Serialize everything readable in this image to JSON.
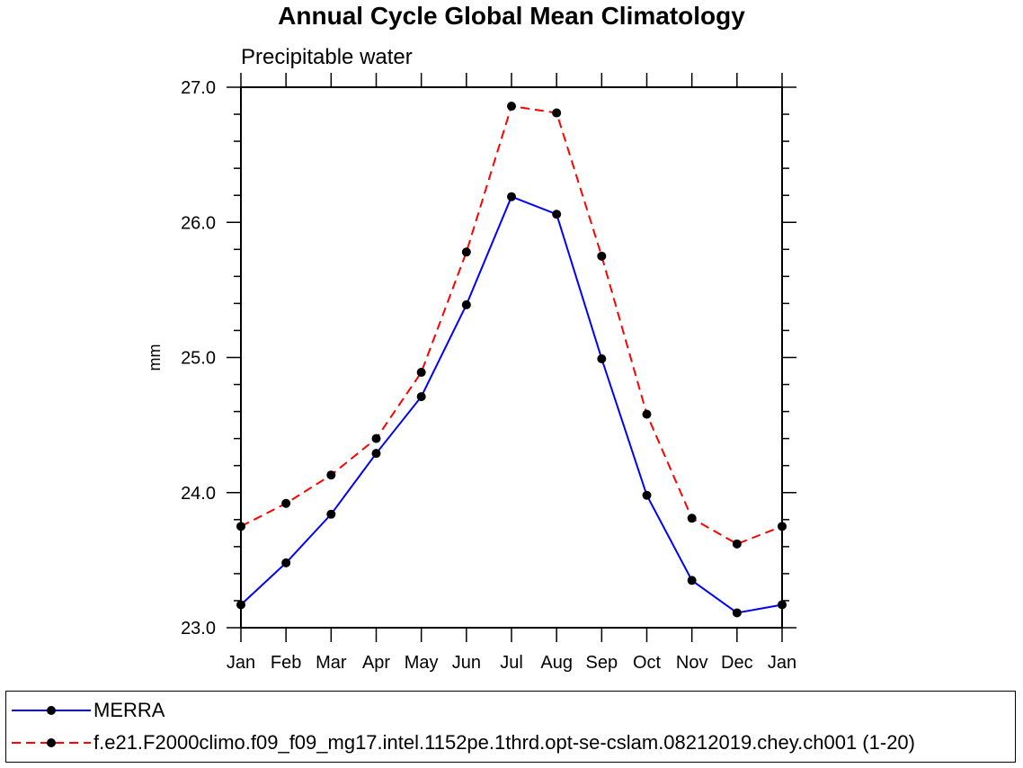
{
  "chart_data": {
    "type": "line",
    "title": "Annual Cycle Global Mean Climatology",
    "subtitle": "Precipitable water",
    "xlabel": "",
    "ylabel": "mm",
    "categories": [
      "Jan",
      "Feb",
      "Mar",
      "Apr",
      "May",
      "Jun",
      "Jul",
      "Aug",
      "Sep",
      "Oct",
      "Nov",
      "Dec",
      "Jan"
    ],
    "ylim": [
      23.0,
      27.0
    ],
    "yticks": [
      "23.0",
      "24.0",
      "25.0",
      "26.0",
      "27.0"
    ],
    "series": [
      {
        "name": "MERRA",
        "color": "#0000ff",
        "dash": "solid",
        "values": [
          23.17,
          23.48,
          23.84,
          24.29,
          24.71,
          25.39,
          26.19,
          26.06,
          24.99,
          23.98,
          23.35,
          23.11,
          23.17
        ]
      },
      {
        "name": "f.e21.F2000climo.f09_f09_mg17.intel.1152pe.1thrd.opt-se-cslam.08212019.chey.ch001 (1-20)",
        "color": "#ff0000",
        "dash": "dashed",
        "values": [
          23.75,
          23.92,
          24.13,
          24.4,
          24.89,
          25.78,
          26.86,
          26.81,
          25.75,
          24.58,
          23.81,
          23.62,
          23.75
        ]
      }
    ],
    "grid": false,
    "legend": "bottom"
  }
}
